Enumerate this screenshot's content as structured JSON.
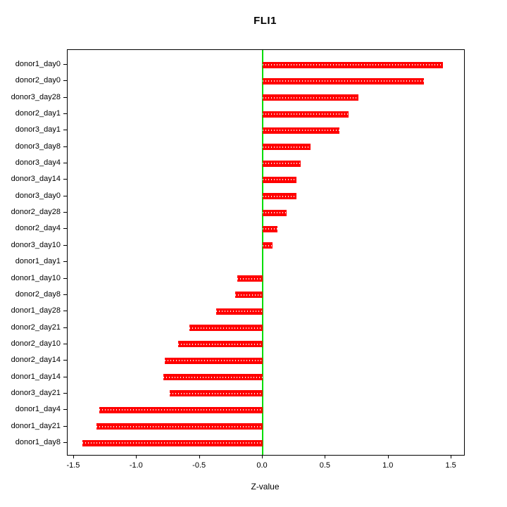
{
  "title": "FLI1",
  "chart_data": {
    "type": "bar",
    "orientation": "horizontal",
    "title": "FLI1",
    "xlabel": "Z-value",
    "ylabel": "",
    "xlim": [
      -1.55,
      1.6
    ],
    "xticks": [
      -1.5,
      -1.0,
      -0.5,
      0.0,
      0.5,
      1.0,
      1.5
    ],
    "xtick_labels": [
      "-1.5",
      "-1.0",
      "-0.5",
      "0.0",
      "0.5",
      "1.0",
      "1.5"
    ],
    "grid": false,
    "legend": "none",
    "bar_color": "#ff0000",
    "zero_line_color": "#00dd00",
    "categories": [
      "donor1_day0",
      "donor2_day0",
      "donor3_day28",
      "donor2_day1",
      "donor3_day1",
      "donor3_day8",
      "donor3_day4",
      "donor3_day14",
      "donor3_day0",
      "donor2_day28",
      "donor2_day4",
      "donor3_day10",
      "donor1_day1",
      "donor1_day10",
      "donor2_day8",
      "donor1_day28",
      "donor2_day21",
      "donor2_day10",
      "donor2_day14",
      "donor1_day14",
      "donor3_day21",
      "donor1_day4",
      "donor1_day21",
      "donor1_day8"
    ],
    "values": [
      1.43,
      1.28,
      0.76,
      0.68,
      0.61,
      0.38,
      0.3,
      0.27,
      0.27,
      0.19,
      0.12,
      0.08,
      0.0,
      -0.2,
      -0.22,
      -0.37,
      -0.58,
      -0.67,
      -0.78,
      -0.79,
      -0.74,
      -1.3,
      -1.32,
      -1.43
    ]
  }
}
